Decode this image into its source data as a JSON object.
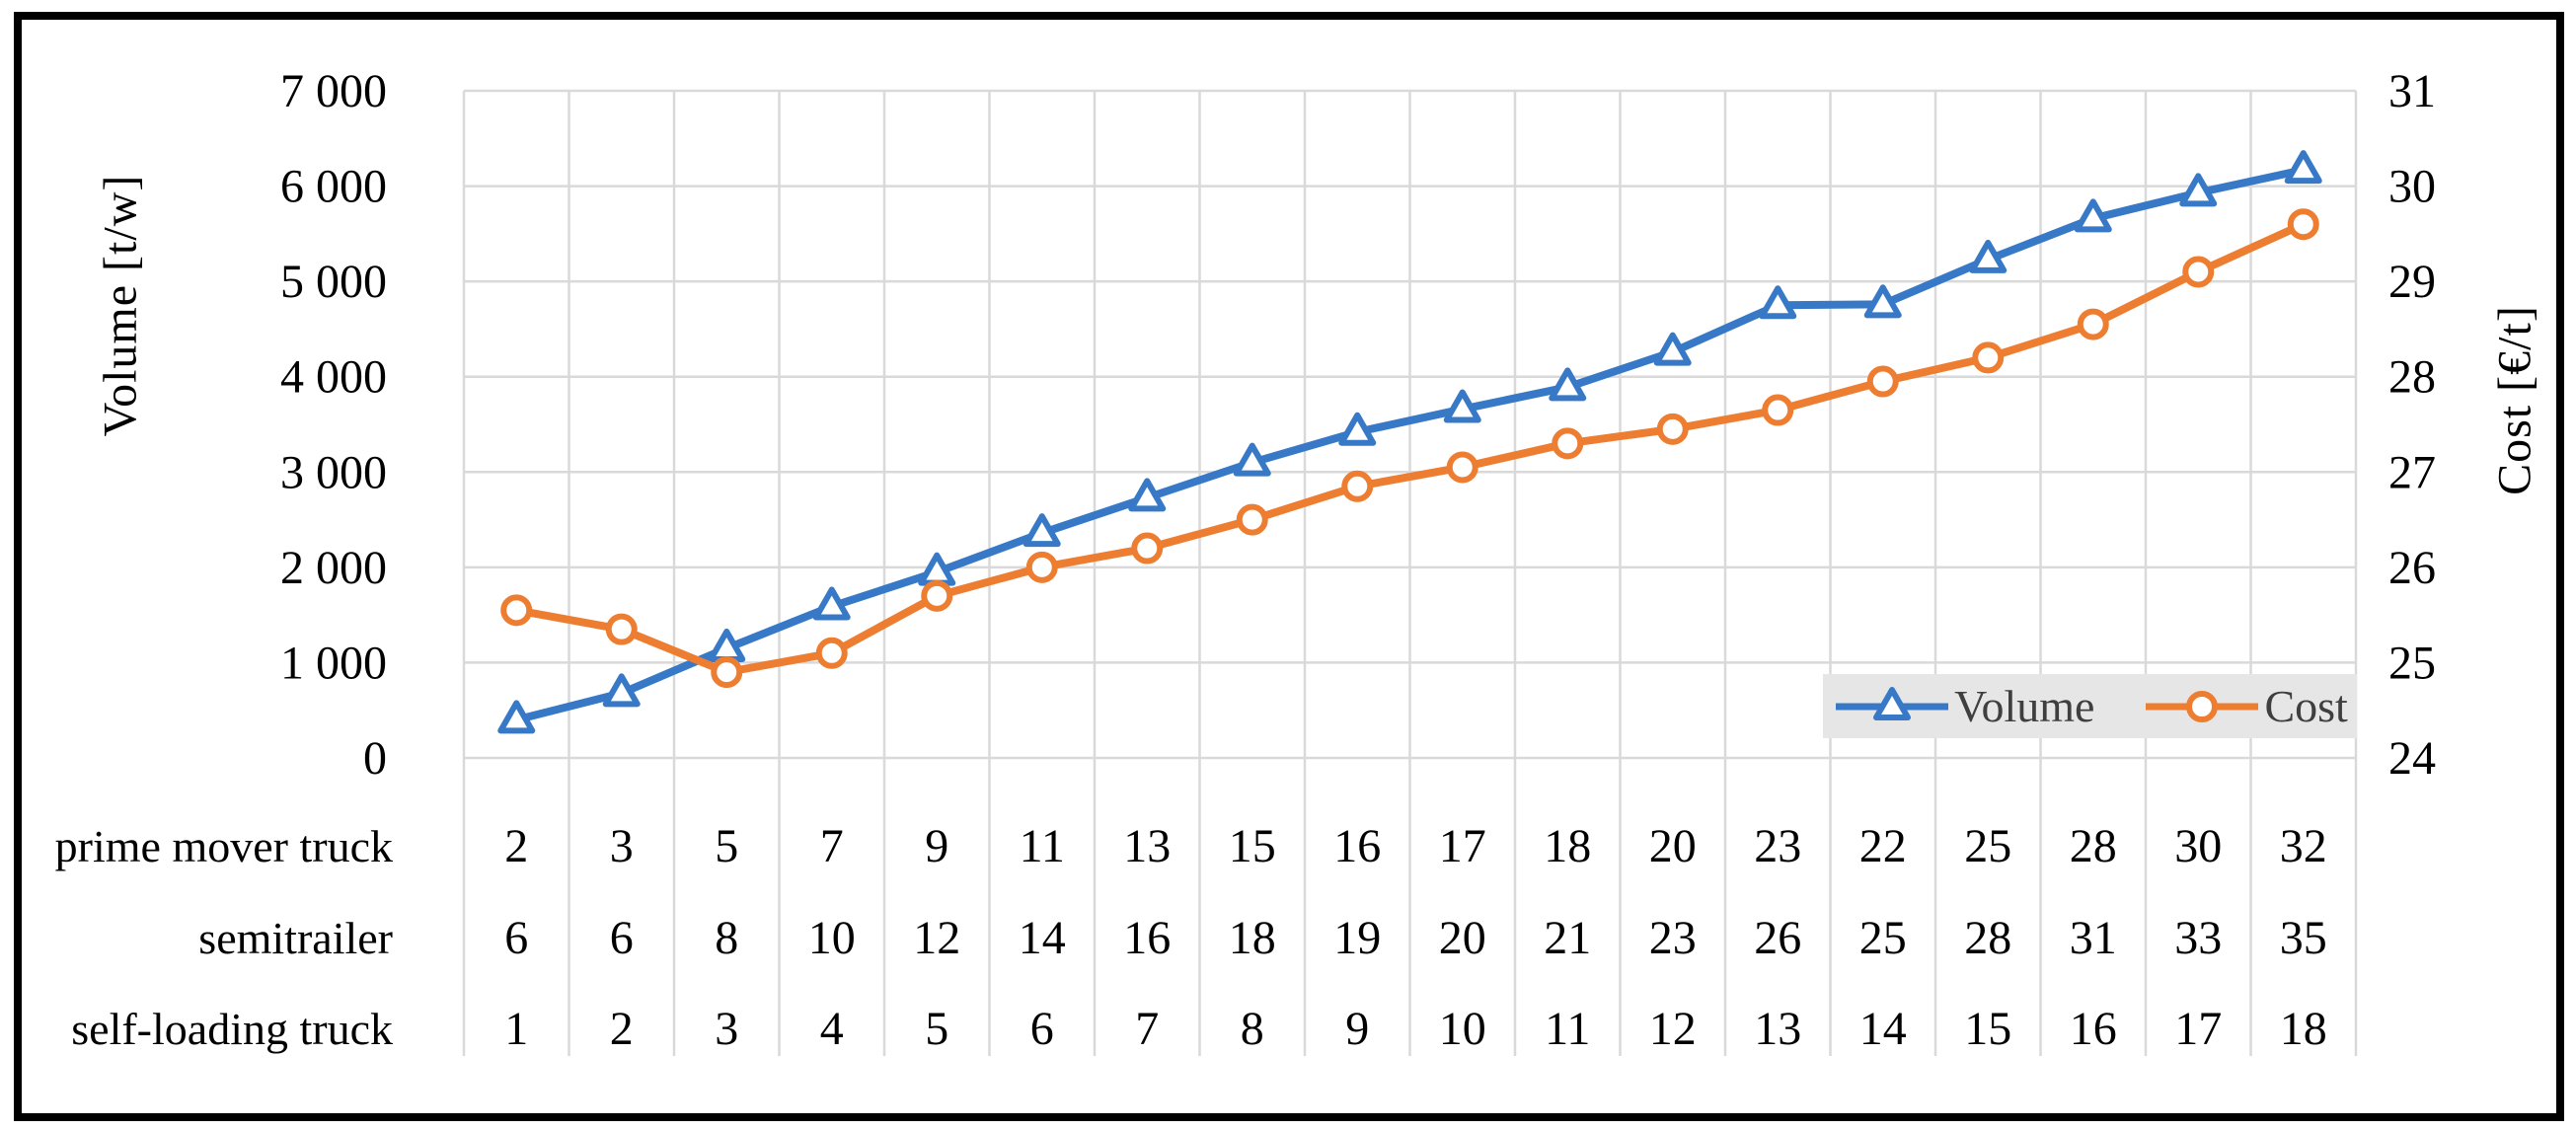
{
  "chart_data": {
    "type": "line",
    "title": "",
    "grid": true,
    "left_axis": {
      "title": "Volume [t/w]",
      "min": 0,
      "max": 7000,
      "step": 1000,
      "tick_labels": [
        "7 000",
        "6 000",
        "5 000",
        "4 000",
        "3 000",
        "2 000",
        "1 000",
        "0"
      ]
    },
    "right_axis": {
      "title": "Cost [€/t]",
      "min": 24,
      "max": 31,
      "step": 1,
      "tick_labels": [
        "31",
        "30",
        "29",
        "28",
        "27",
        "26",
        "25",
        "24"
      ]
    },
    "x_category_rows": [
      {
        "label": "prime mover truck",
        "values": [
          2,
          3,
          5,
          7,
          9,
          11,
          13,
          15,
          16,
          17,
          18,
          20,
          23,
          22,
          25,
          28,
          30,
          32
        ]
      },
      {
        "label": "semitrailer",
        "values": [
          6,
          6,
          8,
          10,
          12,
          14,
          16,
          18,
          19,
          20,
          21,
          23,
          26,
          25,
          28,
          31,
          33,
          35
        ]
      },
      {
        "label": "self-loading truck",
        "values": [
          1,
          2,
          3,
          4,
          5,
          6,
          7,
          8,
          9,
          10,
          11,
          12,
          13,
          14,
          15,
          16,
          17,
          18
        ]
      }
    ],
    "series": [
      {
        "name": "Volume",
        "axis": "left",
        "marker": "triangle",
        "color": "#3779C7",
        "values": [
          400,
          680,
          1150,
          1590,
          1950,
          2360,
          2730,
          3100,
          3420,
          3660,
          3890,
          4260,
          4750,
          4760,
          5230,
          5660,
          5930,
          6170
        ]
      },
      {
        "name": "Cost",
        "axis": "right",
        "marker": "circle",
        "color": "#ED7D31",
        "values": [
          25.55,
          25.35,
          24.9,
          25.1,
          25.7,
          26.0,
          26.2,
          26.5,
          26.85,
          27.05,
          27.3,
          27.45,
          27.65,
          27.95,
          28.2,
          28.55,
          29.1,
          29.6
        ]
      }
    ],
    "legend": {
      "position": "inside-bottom-right",
      "items": [
        "Volume",
        "Cost"
      ]
    }
  },
  "colors": {
    "gridline": "#D9D9D9",
    "legend_bg": "#E6E6E6",
    "legend_text": "#3F3F3F",
    "axis_text": "#000000"
  }
}
